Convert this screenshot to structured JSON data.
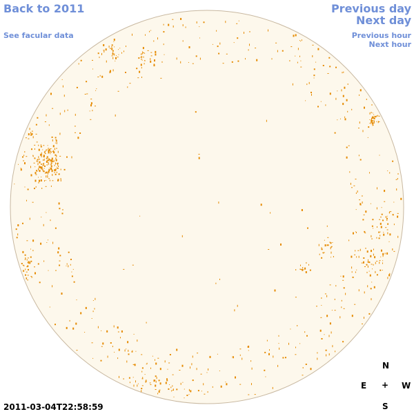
{
  "nav": {
    "back": "Back to 2011",
    "facular": "See facular data",
    "prev_day": "Previous day",
    "next_day": "Next day",
    "prev_hour": "Previous hour",
    "next_hour": "Next hour"
  },
  "timestamp": "2011-03-04T22:58:59",
  "compass": {
    "n": "N",
    "e": "E",
    "plus": "+",
    "w": "W",
    "s": "S"
  },
  "colors": {
    "disk_fill": "#fdf8ec",
    "disk_stroke": "#c8b8a0",
    "facula": "#e58a00",
    "link": "#6f8fd8"
  }
}
